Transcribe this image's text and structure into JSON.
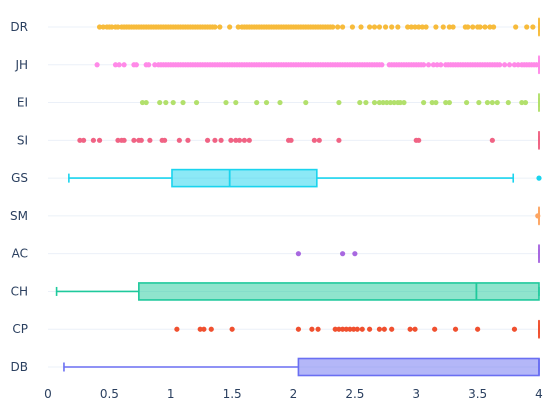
{
  "chart_data": {
    "type": "box",
    "orientation": "horizontal",
    "xlim": [
      0,
      4
    ],
    "x_ticks": [
      "0",
      "0.5",
      "1",
      "1.5",
      "2",
      "2.5",
      "3",
      "3.5",
      "4"
    ],
    "x_tick_values": [
      0,
      0.5,
      1,
      1.5,
      2,
      2.5,
      3,
      3.5,
      4
    ],
    "grid": "horizontal",
    "categories": [
      "DR",
      "JH",
      "EI",
      "SI",
      "GS",
      "SM",
      "AC",
      "CH",
      "CP",
      "DB"
    ],
    "series": [
      {
        "name": "DR",
        "color": "#f7bb3b",
        "box": {
          "lower_fence": 4,
          "q1": 4,
          "median": 4,
          "q3": 4,
          "upper_fence": 4
        },
        "outliers": [
          0.42,
          0.45,
          0.48,
          0.5,
          0.52,
          0.55,
          0.57,
          0.6,
          0.62,
          0.64,
          0.66,
          0.68,
          0.7,
          0.72,
          0.74,
          0.76,
          0.78,
          0.8,
          0.82,
          0.84,
          0.86,
          0.88,
          0.9,
          0.92,
          0.94,
          0.96,
          0.98,
          1.0,
          1.02,
          1.04,
          1.06,
          1.08,
          1.1,
          1.12,
          1.14,
          1.16,
          1.18,
          1.2,
          1.22,
          1.24,
          1.26,
          1.28,
          1.3,
          1.32,
          1.34,
          1.36,
          1.4,
          1.48,
          1.55,
          1.58,
          1.6,
          1.62,
          1.64,
          1.66,
          1.68,
          1.7,
          1.72,
          1.74,
          1.76,
          1.78,
          1.8,
          1.82,
          1.84,
          1.86,
          1.88,
          1.9,
          1.92,
          1.94,
          1.96,
          1.98,
          2.0,
          2.02,
          2.04,
          2.06,
          2.08,
          2.1,
          2.12,
          2.14,
          2.16,
          2.18,
          2.2,
          2.22,
          2.24,
          2.26,
          2.28,
          2.3,
          2.32,
          2.36,
          2.4,
          2.48,
          2.55,
          2.62,
          2.66,
          2.7,
          2.75,
          2.8,
          2.85,
          2.93,
          2.96,
          2.99,
          3.02,
          3.05,
          3.08,
          3.16,
          3.22,
          3.27,
          3.3,
          3.4,
          3.42,
          3.46,
          3.5,
          3.52,
          3.56,
          3.6,
          3.63,
          3.81,
          3.9,
          3.95
        ]
      },
      {
        "name": "JH",
        "color": "#ff8ae8",
        "box": {
          "lower_fence": 4,
          "q1": 4,
          "median": 4,
          "q3": 4,
          "upper_fence": 4
        },
        "outliers": [
          0.4,
          0.55,
          0.58,
          0.62,
          0.7,
          0.72,
          0.8,
          0.82,
          0.87,
          0.9,
          0.92,
          0.94,
          0.96,
          0.98,
          1.0,
          1.02,
          1.04,
          1.06,
          1.08,
          1.1,
          1.12,
          1.14,
          1.16,
          1.18,
          1.2,
          1.22,
          1.24,
          1.26,
          1.28,
          1.3,
          1.32,
          1.34,
          1.36,
          1.38,
          1.4,
          1.42,
          1.44,
          1.46,
          1.48,
          1.5,
          1.52,
          1.54,
          1.56,
          1.58,
          1.6,
          1.62,
          1.64,
          1.66,
          1.68,
          1.7,
          1.72,
          1.74,
          1.76,
          1.78,
          1.8,
          1.82,
          1.84,
          1.86,
          1.88,
          1.9,
          1.92,
          1.94,
          1.96,
          1.98,
          2.0,
          2.02,
          2.04,
          2.06,
          2.08,
          2.1,
          2.12,
          2.14,
          2.16,
          2.18,
          2.2,
          2.22,
          2.24,
          2.26,
          2.28,
          2.3,
          2.32,
          2.34,
          2.36,
          2.38,
          2.4,
          2.42,
          2.44,
          2.46,
          2.48,
          2.5,
          2.52,
          2.54,
          2.56,
          2.58,
          2.6,
          2.62,
          2.64,
          2.66,
          2.68,
          2.7,
          2.72,
          2.78,
          2.8,
          2.82,
          2.84,
          2.86,
          2.88,
          2.9,
          2.92,
          2.94,
          2.96,
          2.98,
          3.0,
          3.02,
          3.04,
          3.06,
          3.1,
          3.14,
          3.17,
          3.2,
          3.24,
          3.26,
          3.28,
          3.3,
          3.32,
          3.34,
          3.36,
          3.38,
          3.4,
          3.42,
          3.44,
          3.46,
          3.48,
          3.5,
          3.52,
          3.54,
          3.56,
          3.58,
          3.6,
          3.62,
          3.64,
          3.66,
          3.68,
          3.72,
          3.76,
          3.8,
          3.83,
          3.86,
          3.88,
          3.9,
          3.92,
          3.94,
          3.96,
          3.98
        ]
      },
      {
        "name": "EI",
        "color": "#b2e06c",
        "box": {
          "lower_fence": 4,
          "q1": 4,
          "median": 4,
          "q3": 4,
          "upper_fence": 4
        },
        "outliers": [
          0.77,
          0.8,
          0.91,
          0.96,
          1.02,
          1.1,
          1.21,
          1.45,
          1.53,
          1.7,
          1.78,
          1.89,
          2.1,
          2.37,
          2.54,
          2.59,
          2.66,
          2.7,
          2.73,
          2.76,
          2.79,
          2.82,
          2.85,
          2.87,
          2.9,
          3.06,
          3.13,
          3.16,
          3.24,
          3.27,
          3.41,
          3.51,
          3.58,
          3.62,
          3.66,
          3.75,
          3.86,
          3.89
        ]
      },
      {
        "name": "SI",
        "color": "#f06384",
        "box": {
          "lower_fence": 4,
          "q1": 4,
          "median": 4,
          "q3": 4,
          "upper_fence": 4
        },
        "outliers": [
          0.26,
          0.29,
          0.37,
          0.42,
          0.57,
          0.6,
          0.62,
          0.7,
          0.74,
          0.76,
          0.83,
          0.93,
          0.95,
          1.07,
          1.14,
          1.3,
          1.36,
          1.41,
          1.49,
          1.53,
          1.56,
          1.6,
          1.64,
          1.96,
          1.98,
          2.17,
          2.21,
          2.37,
          3.0,
          3.02,
          3.62
        ]
      },
      {
        "name": "GS",
        "color": "#1ad4ee",
        "box": {
          "lower_fence": 0.17,
          "q1": 1.01,
          "median": 1.48,
          "q3": 2.19,
          "upper_fence": 3.79
        },
        "outliers": [
          4.0
        ]
      },
      {
        "name": "SM",
        "color": "#fda562",
        "box": {
          "lower_fence": 4,
          "q1": 4,
          "median": 4,
          "q3": 4,
          "upper_fence": 4
        },
        "outliers": [
          3.99
        ]
      },
      {
        "name": "AC",
        "color": "#a868e0",
        "box": {
          "lower_fence": 4,
          "q1": 4,
          "median": 4,
          "q3": 4,
          "upper_fence": 4
        },
        "outliers": [
          2.04,
          2.4,
          2.5
        ]
      },
      {
        "name": "CH",
        "color": "#1fc99c",
        "box": {
          "lower_fence": 0.07,
          "q1": 0.74,
          "median": 3.49,
          "q3": 4.0,
          "upper_fence": 4.0
        },
        "outliers": []
      },
      {
        "name": "CP",
        "color": "#f0502f",
        "box": {
          "lower_fence": 4,
          "q1": 4,
          "median": 4,
          "q3": 4,
          "upper_fence": 4
        },
        "outliers": [
          1.05,
          1.24,
          1.27,
          1.33,
          1.5,
          2.04,
          2.15,
          2.2,
          2.34,
          2.37,
          2.4,
          2.43,
          2.46,
          2.49,
          2.52,
          2.56,
          2.62,
          2.7,
          2.74,
          2.8,
          2.95,
          2.99,
          3.15,
          3.32,
          3.5,
          3.8
        ]
      },
      {
        "name": "DB",
        "color": "#6a6ff2",
        "box": {
          "lower_fence": 0.13,
          "q1": 2.04,
          "median": 4.0,
          "q3": 4.0,
          "upper_fence": 4.0
        },
        "outliers": []
      }
    ]
  }
}
